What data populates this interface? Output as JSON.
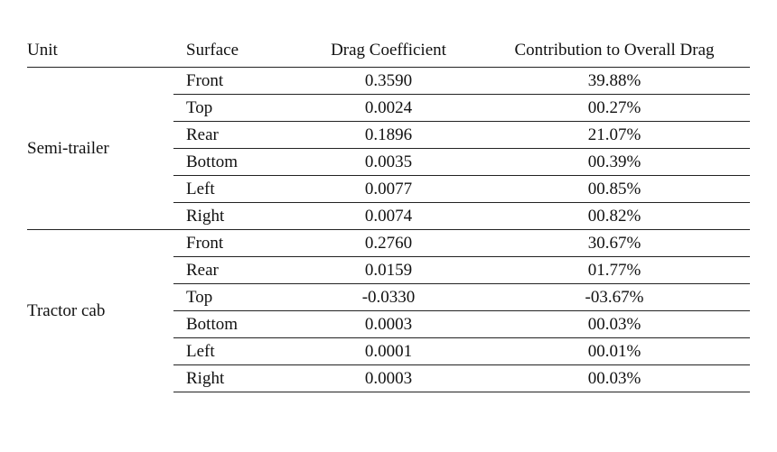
{
  "table": {
    "headers": {
      "unit": "Unit",
      "surface": "Surface",
      "coefficient": "Drag Coefficient",
      "contribution": "Contribution to Overall Drag"
    },
    "groups": [
      {
        "unit": "Semi-trailer",
        "rows": [
          {
            "surface": "Front",
            "coefficient": "0.3590",
            "contribution": "39.88%"
          },
          {
            "surface": "Top",
            "coefficient": "0.0024",
            "contribution": "00.27%"
          },
          {
            "surface": "Rear",
            "coefficient": "0.1896",
            "contribution": "21.07%"
          },
          {
            "surface": "Bottom",
            "coefficient": "0.0035",
            "contribution": "00.39%"
          },
          {
            "surface": "Left",
            "coefficient": "0.0077",
            "contribution": "00.85%"
          },
          {
            "surface": "Right",
            "coefficient": "0.0074",
            "contribution": "00.82%"
          }
        ]
      },
      {
        "unit": "Tractor cab",
        "rows": [
          {
            "surface": "Front",
            "coefficient": "0.2760",
            "contribution": "30.67%"
          },
          {
            "surface": "Rear",
            "coefficient": "0.0159",
            "contribution": "01.77%"
          },
          {
            "surface": "Top",
            "coefficient": "-0.0330",
            "contribution": "-03.67%"
          },
          {
            "surface": "Bottom",
            "coefficient": "0.0003",
            "contribution": "00.03%"
          },
          {
            "surface": "Left",
            "coefficient": "0.0001",
            "contribution": "00.01%"
          },
          {
            "surface": "Right",
            "coefficient": "0.0003",
            "contribution": "00.03%"
          }
        ]
      }
    ]
  }
}
